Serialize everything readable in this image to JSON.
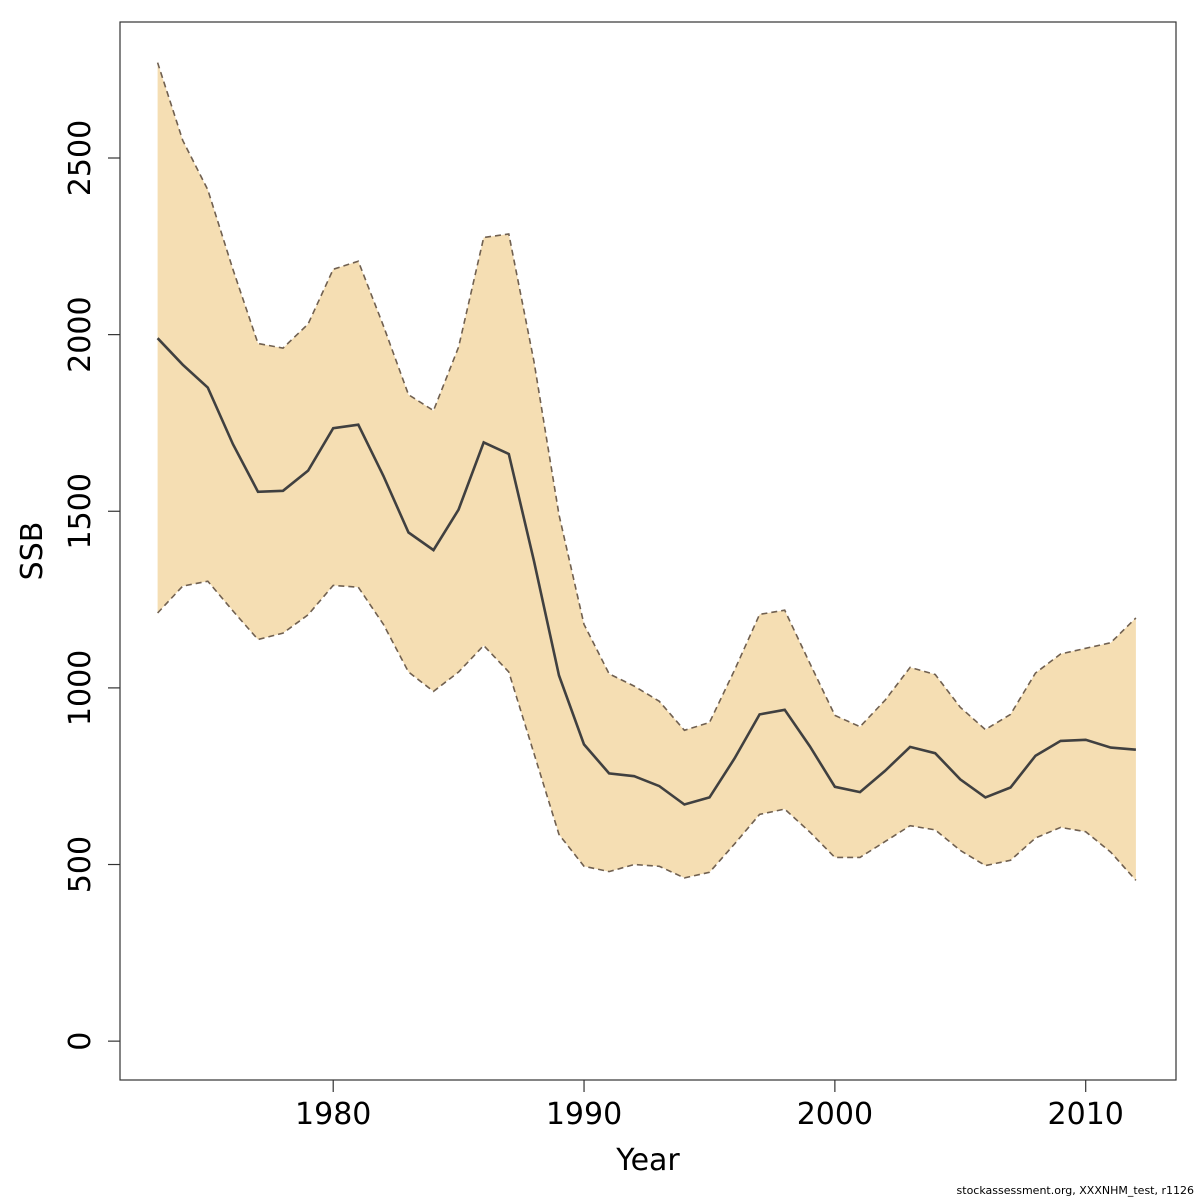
{
  "chart_data": {
    "type": "area",
    "xlabel": "Year",
    "ylabel": "SSB",
    "xlim": [
      1971.5,
      2013.6
    ],
    "ylim": [
      -110,
      2885
    ],
    "xticks": [
      1980,
      1990,
      2000,
      2010
    ],
    "yticks": [
      0,
      500,
      1000,
      1500,
      2000,
      2500
    ],
    "band_fill_color": "#f5deb3",
    "band_line_color": "#706050",
    "mean_line_color": "#404040",
    "x": [
      1973,
      1974,
      1975,
      1976,
      1977,
      1978,
      1979,
      1980,
      1981,
      1982,
      1983,
      1984,
      1985,
      1986,
      1987,
      1988,
      1989,
      1990,
      1991,
      1992,
      1993,
      1994,
      1995,
      1996,
      1997,
      1998,
      1999,
      2000,
      2001,
      2002,
      2003,
      2004,
      2005,
      2006,
      2007,
      2008,
      2009,
      2010,
      2011,
      2012
    ],
    "series": [
      {
        "role": "estimate",
        "values": [
          1990,
          1915,
          1850,
          1690,
          1555,
          1558,
          1615,
          1735,
          1745,
          1600,
          1440,
          1390,
          1505,
          1695,
          1662,
          1360,
          1035,
          840,
          758,
          750,
          722,
          670,
          690,
          800,
          925,
          938,
          835,
          720,
          705,
          765,
          833,
          815,
          741,
          690,
          718,
          808,
          850,
          853,
          831,
          825
        ]
      },
      {
        "role": "upper",
        "values": [
          2770,
          2550,
          2410,
          2185,
          1975,
          1962,
          2030,
          2185,
          2208,
          2025,
          1830,
          1785,
          1965,
          2275,
          2285,
          1925,
          1490,
          1180,
          1040,
          1005,
          962,
          880,
          902,
          1050,
          1208,
          1220,
          1070,
          922,
          890,
          965,
          1058,
          1038,
          945,
          882,
          925,
          1042,
          1096,
          1112,
          1128,
          1198
        ]
      },
      {
        "role": "lower",
        "values": [
          1212,
          1288,
          1302,
          1218,
          1137,
          1155,
          1207,
          1290,
          1285,
          1180,
          1045,
          990,
          1045,
          1120,
          1045,
          815,
          585,
          495,
          480,
          500,
          495,
          462,
          478,
          558,
          642,
          657,
          592,
          520,
          520,
          565,
          610,
          598,
          540,
          497,
          512,
          575,
          605,
          593,
          535,
          455
        ]
      }
    ]
  },
  "footer": {
    "text": "stockassessment.org, XXXNHM_test, r1126"
  }
}
